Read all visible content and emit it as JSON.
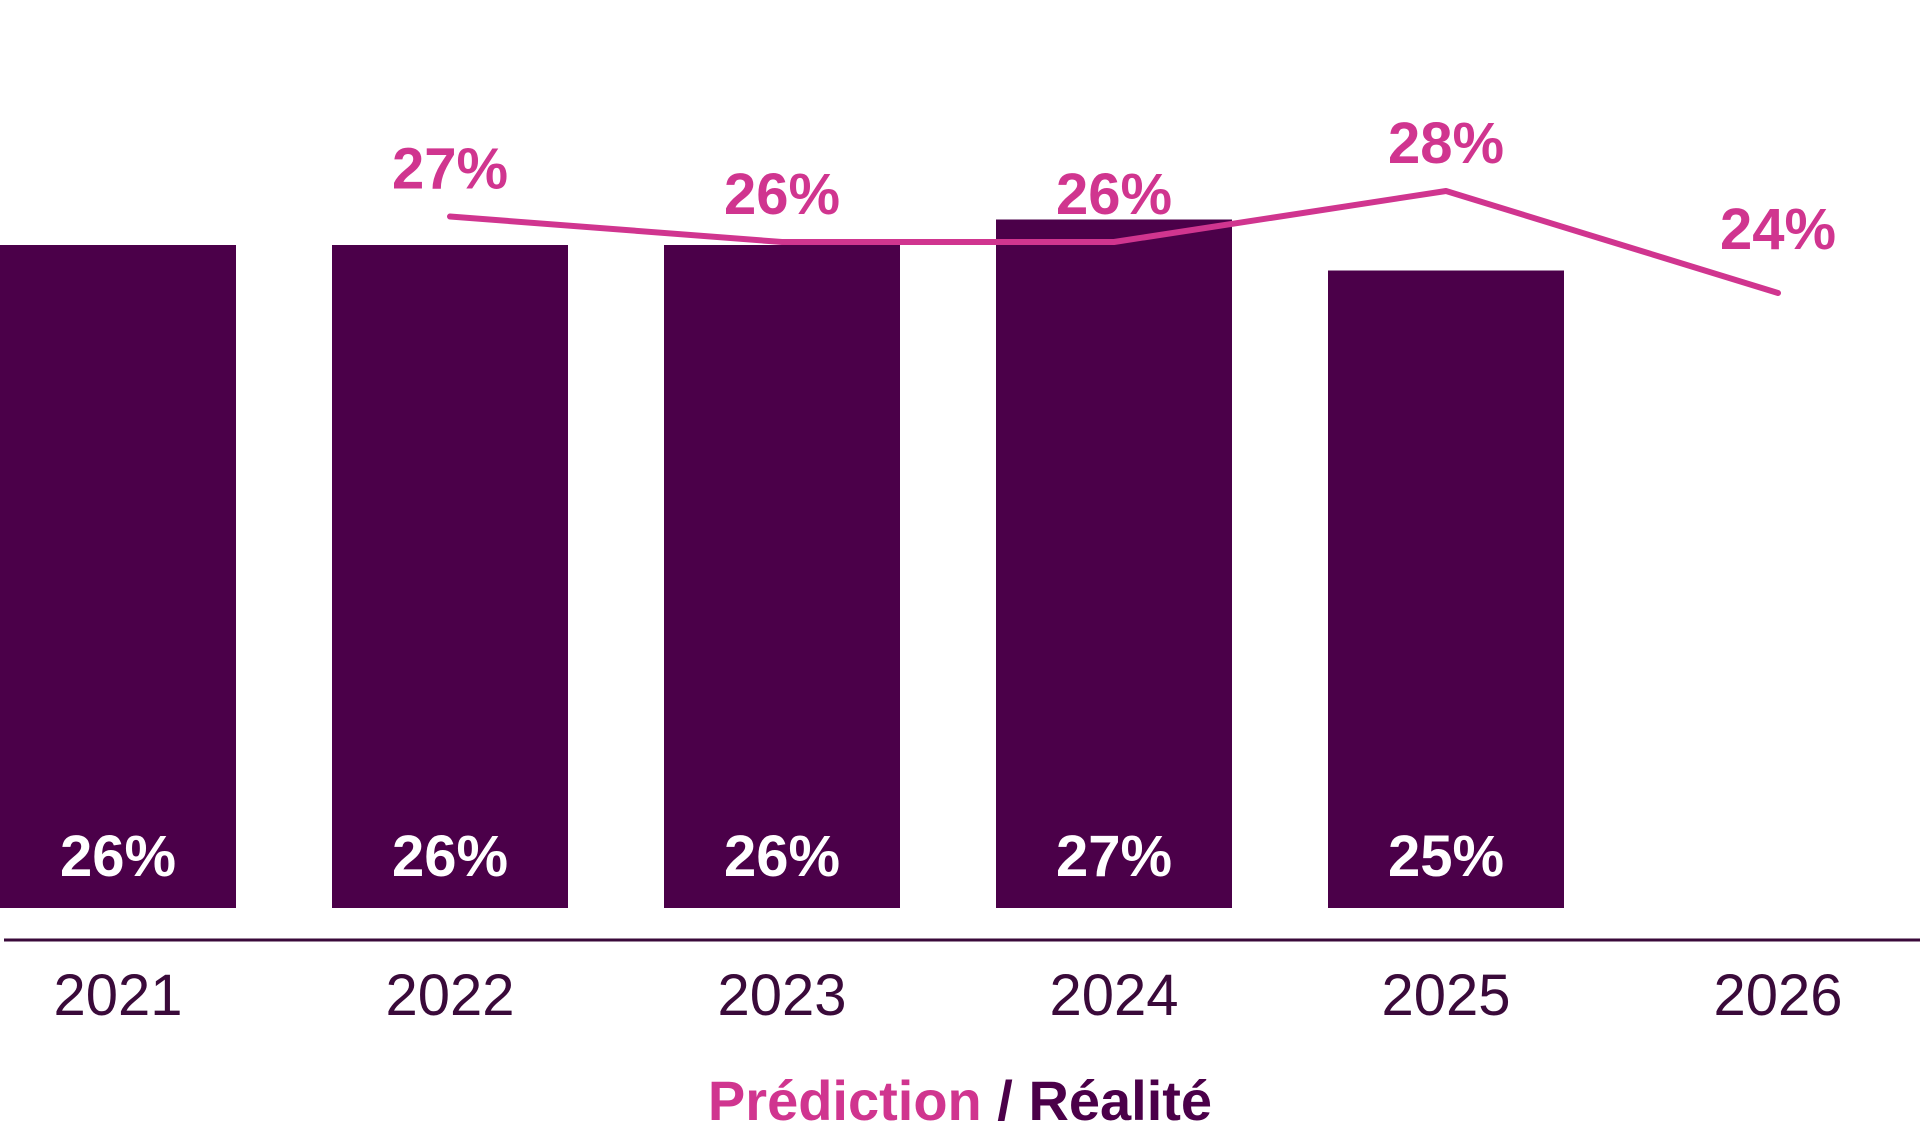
{
  "colors": {
    "bar": "#4b0049",
    "line": "#d0358f",
    "axis": "#3a0a3a",
    "tick_text": "#3a0a3a"
  },
  "legend": {
    "prediction": "Prédiction",
    "separator": " / ",
    "reality": "Réalité"
  },
  "chart_data": {
    "type": "bar",
    "categories": [
      "2021",
      "2022",
      "2023",
      "2024",
      "2025",
      "2026"
    ],
    "series": [
      {
        "name": "Réalité",
        "type": "bar",
        "values": [
          26,
          26,
          26,
          27,
          25,
          null
        ],
        "labels": [
          "26%",
          "26%",
          "26%",
          "27%",
          "25%",
          ""
        ]
      },
      {
        "name": "Prédiction",
        "type": "line",
        "values": [
          null,
          27,
          26,
          26,
          28,
          24
        ],
        "labels": [
          "",
          "27%",
          "26%",
          "26%",
          "28%",
          "24%"
        ]
      }
    ],
    "grid": false,
    "legend_position": "bottom"
  }
}
